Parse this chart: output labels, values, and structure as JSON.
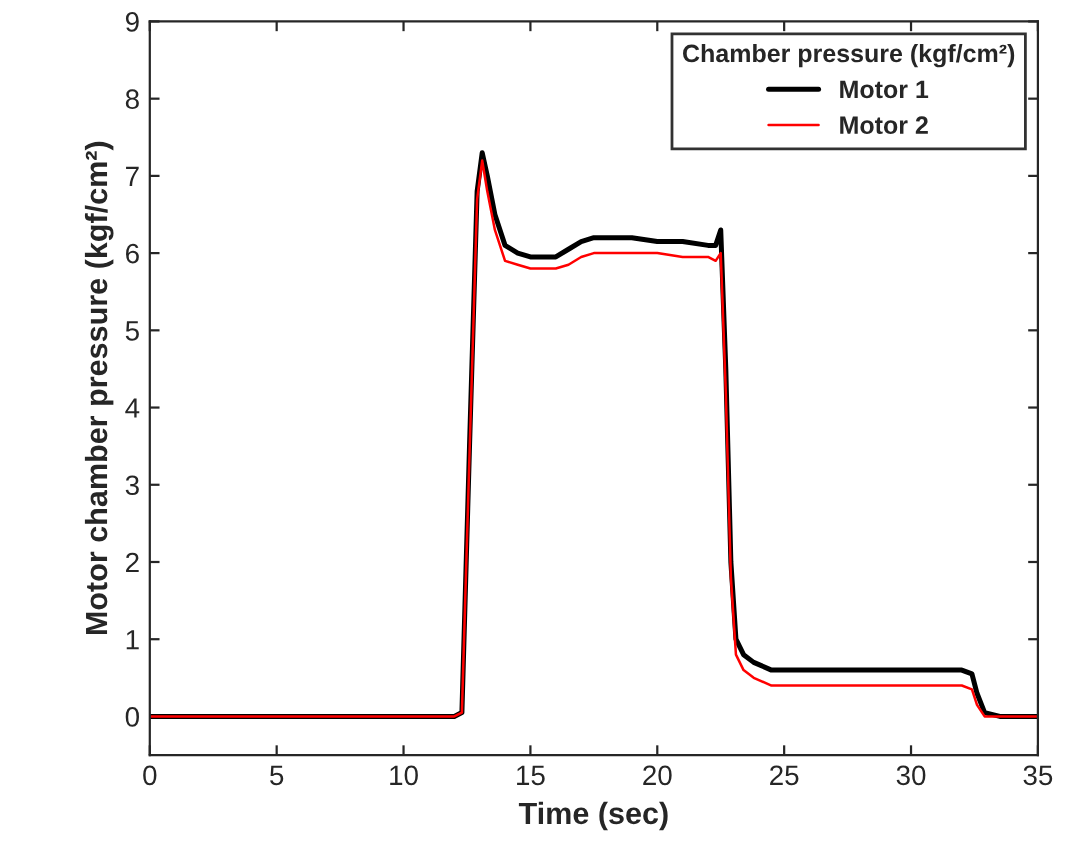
{
  "chart_data": {
    "type": "line",
    "xlabel": "Time (sec)",
    "ylabel": "Motor chamber pressure (kgf/cm²)",
    "legend_title": "Chamber pressure (kgf/cm²)",
    "legend": "top right",
    "grid": false,
    "marker": "none",
    "line_style": "solid",
    "xlim": [
      0,
      35
    ],
    "ylim": [
      -0.5,
      9
    ],
    "xticks": [
      0,
      5,
      10,
      15,
      20,
      25,
      30,
      35
    ],
    "yticks": [
      0,
      1,
      2,
      3,
      4,
      5,
      6,
      7,
      8,
      9
    ],
    "series": [
      {
        "name": "Motor 1",
        "color": "#000000",
        "x": [
          0,
          3,
          6,
          9,
          12,
          12.3,
          12.6,
          12.9,
          13.1,
          13.3,
          13.6,
          14,
          14.5,
          15,
          15.5,
          16,
          16.5,
          17,
          17.5,
          18,
          19,
          20,
          21,
          22,
          22.3,
          22.5,
          22.7,
          22.9,
          23.1,
          23.4,
          23.8,
          24.5,
          26,
          28,
          30,
          32,
          32.4,
          32.6,
          32.9,
          33.5,
          35
        ],
        "values": [
          0,
          0,
          0,
          0,
          0,
          0.05,
          3.5,
          6.8,
          7.3,
          7.0,
          6.5,
          6.1,
          6.0,
          5.95,
          5.95,
          5.95,
          6.05,
          6.15,
          6.2,
          6.2,
          6.2,
          6.15,
          6.15,
          6.1,
          6.1,
          6.3,
          4.5,
          2.0,
          1.0,
          0.8,
          0.7,
          0.6,
          0.6,
          0.6,
          0.6,
          0.6,
          0.55,
          0.3,
          0.05,
          0,
          0
        ]
      },
      {
        "name": "Motor 2",
        "color": "#ff0000",
        "x": [
          0,
          3,
          6,
          9,
          12,
          12.3,
          12.6,
          12.9,
          13.1,
          13.3,
          13.6,
          14,
          14.5,
          15,
          15.5,
          16,
          16.5,
          17,
          17.5,
          18,
          19,
          20,
          21,
          22,
          22.3,
          22.5,
          22.7,
          22.9,
          23.1,
          23.4,
          23.8,
          24.5,
          26,
          28,
          30,
          32,
          32.4,
          32.6,
          32.9,
          33.5,
          35
        ],
        "values": [
          0,
          0,
          0,
          0,
          0,
          0.05,
          3.4,
          6.7,
          7.2,
          6.8,
          6.3,
          5.9,
          5.85,
          5.8,
          5.8,
          5.8,
          5.85,
          5.95,
          6.0,
          6.0,
          6.0,
          6.0,
          5.95,
          5.95,
          5.9,
          6.0,
          4.2,
          1.8,
          0.8,
          0.6,
          0.5,
          0.4,
          0.4,
          0.4,
          0.4,
          0.4,
          0.35,
          0.15,
          0.0,
          0,
          0
        ]
      }
    ]
  }
}
